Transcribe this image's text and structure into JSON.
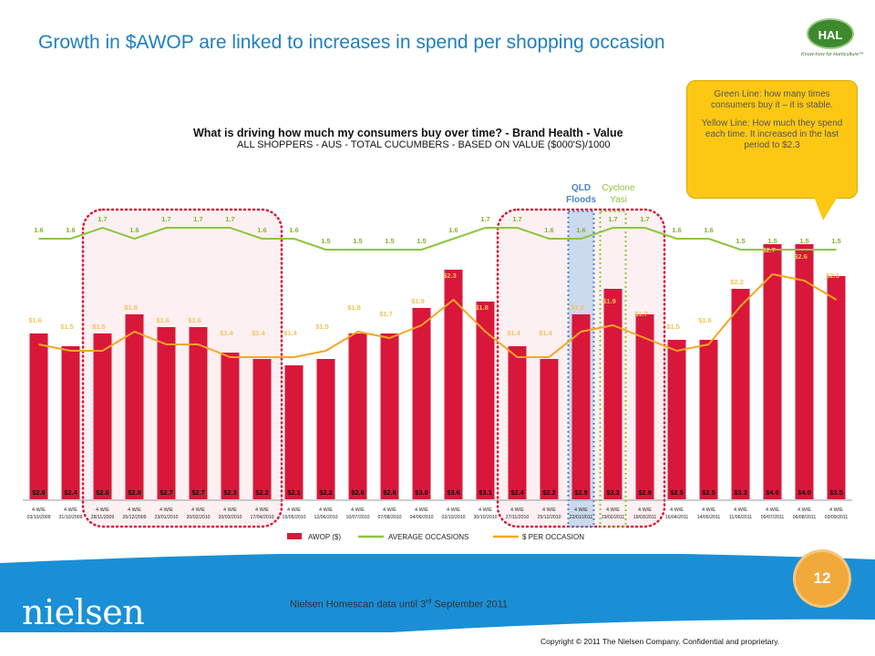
{
  "slide": {
    "title": "Growth in $AWOP are linked to increases in spend per shopping occasion",
    "logo_text": "HAL",
    "logo_tagline": "Know-how for Horticulture™",
    "callout_green": "Green Line: how many times consumers buy it – it is stable.",
    "callout_yellow": "Yellow Line: How much they spend each time. It increased in the last period to $2.3",
    "page_number": "12",
    "source_prefix": "Nielsen Homescan data until 3",
    "source_sup": "rd",
    "source_suffix": " September 2011",
    "brand": "nielsen",
    "brand_dots": "• • • • • • • •",
    "copyright": "Copyright © 2011 The Nielsen Company. Confidential and proprietary.",
    "colors": {
      "title": "#1b7fc4",
      "callout": "#fdc814",
      "footer": "#1a8fd6",
      "page_circle": "#f2a93b"
    }
  },
  "chart_data": {
    "type": "bar",
    "title": "What is driving how much my consumers buy over time? - Brand Health - Value",
    "subtitle": "ALL SHOPPERS - AUS - TOTAL CUCUMBERS - BASED ON VALUE ($000'S)/1000",
    "categories": [
      "4 W/E 03/10/2009",
      "4 W/E 31/10/2009",
      "4 W/E 28/11/2009",
      "4 W/E 26/12/2009",
      "4 W/E 23/01/2010",
      "4 W/E 20/02/2010",
      "4 W/E 20/03/2010",
      "4 W/E 17/04/2010",
      "4 W/E 15/05/2010",
      "4 W/E 12/06/2010",
      "4 W/E 10/07/2010",
      "4 W/E 07/08/2010",
      "4 W/E 04/09/2010",
      "4 W/E 02/10/2010",
      "4 W/E 30/10/2010",
      "4 W/E 27/11/2010",
      "4 W/E 25/12/2010",
      "4 W/E 22/01/2011",
      "4 W/E 19/02/2011",
      "4 W/E 19/03/2011",
      "4 W/E 16/04/2011",
      "4 W/E 14/05/2011",
      "4 W/E 11/06/2011",
      "4 W/E 09/07/2011",
      "4 W/E 06/08/2011",
      "4 W/E 03/09/2011"
    ],
    "cat_top": [
      "4 W/E",
      "4 W/E",
      "4 W/E",
      "4 W/E",
      "4 W/E",
      "4 W/E",
      "4 W/E",
      "4 W/E",
      "4 W/E",
      "4 W/E",
      "4 W/E",
      "4 W/E",
      "4 W/E",
      "4 W/E",
      "4 W/E",
      "4 W/E",
      "4 W/E",
      "4 W/E",
      "4 W/E",
      "4 W/E",
      "4 W/E",
      "4 W/E",
      "4 W/E",
      "4 W/E",
      "4 W/E",
      "4 W/E"
    ],
    "cat_date": [
      "03/10/2009",
      "31/10/2009",
      "28/11/2009",
      "26/12/2009",
      "23/01/2010",
      "20/02/2010",
      "20/03/2010",
      "17/04/2010",
      "15/05/2010",
      "12/06/2010",
      "10/07/2010",
      "07/08/2010",
      "04/09/2010",
      "02/10/2010",
      "30/10/2010",
      "27/11/2010",
      "25/12/2010",
      "22/01/2011",
      "19/02/2011",
      "19/03/2011",
      "16/04/2011",
      "14/05/2011",
      "11/06/2011",
      "09/07/2011",
      "06/08/2011",
      "03/09/2011"
    ],
    "series": [
      {
        "name": "AWOP ($)",
        "kind": "bar",
        "color": "#d9173a",
        "values": [
          2.6,
          2.4,
          2.6,
          2.9,
          2.7,
          2.7,
          2.3,
          2.2,
          2.1,
          2.2,
          2.6,
          2.6,
          3.0,
          3.6,
          3.1,
          2.4,
          2.2,
          2.9,
          3.3,
          2.9,
          2.5,
          2.5,
          3.3,
          4.0,
          4.0,
          3.5
        ],
        "labels": [
          "$2.6",
          "$2.4",
          "$2.6",
          "$2.9",
          "$2.7",
          "$2.7",
          "$2.3",
          "$2.2",
          "$2.1",
          "$2.2",
          "$2.6",
          "$2.6",
          "$3.0",
          "$3.6",
          "$3.1",
          "$2.4",
          "$2.2",
          "$2.9",
          "$3.3",
          "$2.9",
          "$2.5",
          "$2.5",
          "$3.3",
          "$4.0",
          "$4.0",
          "$3.5"
        ]
      },
      {
        "name": "AVERAGE OCCASIONS",
        "kind": "line",
        "color": "#8cc63f",
        "values": [
          1.6,
          1.6,
          1.7,
          1.6,
          1.7,
          1.7,
          1.7,
          1.6,
          1.6,
          1.5,
          1.5,
          1.5,
          1.5,
          1.6,
          1.7,
          1.7,
          1.6,
          1.6,
          1.7,
          1.7,
          1.6,
          1.6,
          1.5,
          1.5,
          1.5,
          1.5
        ],
        "labels": [
          "1.6",
          "1.6",
          "1.7",
          "1.6",
          "1.7",
          "1.7",
          "1.7",
          "1.6",
          "1.6",
          "1.5",
          "1.5",
          "1.5",
          "1.5",
          "1.6",
          "1.7",
          "1.7",
          "1.6",
          "1.6",
          "1.7",
          "1.7",
          "1.6",
          "1.6",
          "1.5",
          "1.5",
          "1.5",
          "1.5"
        ]
      },
      {
        "name": "$ PER OCCASION",
        "kind": "line",
        "color": "#f5a623",
        "values": [
          1.6,
          1.5,
          1.5,
          1.8,
          1.6,
          1.6,
          1.4,
          1.4,
          1.4,
          1.5,
          1.8,
          1.7,
          1.9,
          2.3,
          1.8,
          1.4,
          1.4,
          1.8,
          1.9,
          1.7,
          1.5,
          1.6,
          2.2,
          2.7,
          2.6,
          2.3
        ],
        "labels": [
          "$1.6",
          "$1.5",
          "$1.5",
          "$1.8",
          "$1.6",
          "$1.6",
          "$1.4",
          "$1.4",
          "$1.4",
          "$1.5",
          "$1.8",
          "$1.7",
          "$1.9",
          "$2.3",
          "$1.8",
          "$1.4",
          "$1.4",
          "$1.8",
          "$1.9",
          "$1.7",
          "$1.5",
          "$1.6",
          "$2.2",
          "$2.7",
          "$2.6",
          "$2.3"
        ]
      }
    ],
    "annotations": [
      {
        "text_1": "QLD",
        "text_2": "Floods",
        "category": "4 W/E 22/01/2011",
        "color": "#4a86c5"
      },
      {
        "text_1": "Cyclone",
        "text_2": "Yasi",
        "category": "4 W/E 19/02/2011",
        "color": "#8cc63f"
      }
    ],
    "highlight_groups": [
      {
        "from": "4 W/E 28/11/2009",
        "to": "4 W/E 17/04/2010"
      },
      {
        "from": "4 W/E 27/11/2010",
        "to": "4 W/E 19/03/2011"
      }
    ],
    "legend_position": "bottom",
    "grid": false
  }
}
